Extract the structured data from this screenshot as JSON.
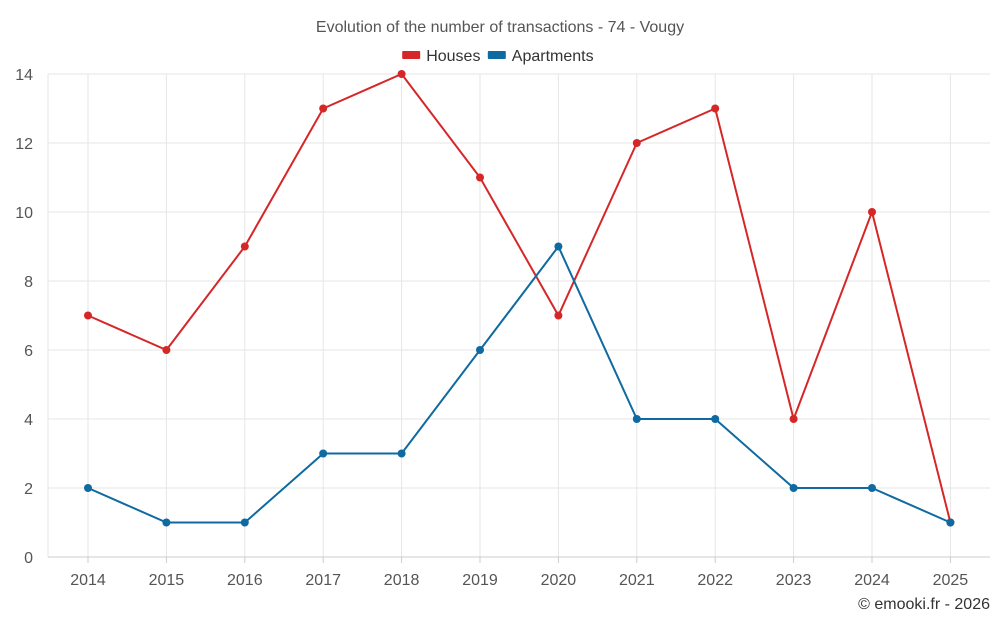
{
  "chart_data": {
    "type": "line",
    "title": "Evolution of the number of transactions - 74 - Vougy",
    "categories": [
      "2014",
      "2015",
      "2016",
      "2017",
      "2018",
      "2019",
      "2020",
      "2021",
      "2022",
      "2023",
      "2024",
      "2025"
    ],
    "series": [
      {
        "name": "Houses",
        "color": "#d62728",
        "values": [
          7,
          6,
          9,
          13,
          14,
          11,
          7,
          12,
          13,
          4,
          10,
          1
        ]
      },
      {
        "name": "Apartments",
        "color": "#0e6aa0",
        "values": [
          2,
          1,
          1,
          3,
          3,
          6,
          9,
          4,
          4,
          2,
          2,
          1
        ]
      }
    ],
    "yticks": [
      0,
      2,
      4,
      6,
      8,
      10,
      12,
      14
    ],
    "ylim": [
      0,
      14
    ],
    "xlabel": "",
    "ylabel": "",
    "grid": true,
    "legend": "top-center"
  },
  "footer": {
    "credit": "© emooki.fr - 2026"
  }
}
